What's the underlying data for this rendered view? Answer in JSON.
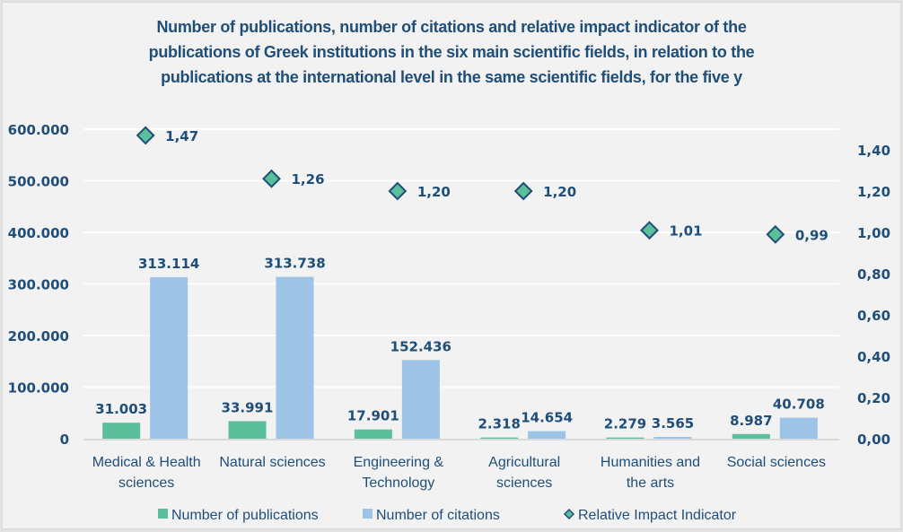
{
  "chart_data": {
    "type": "bar",
    "title_lines": [
      "Number of publications, number of citations and relative impact indicator of the",
      "publications of Greek institutions in the six main scientific fields, in relation to the",
      "publications at the international level in the same scientific fields, for the five y"
    ],
    "categories": [
      [
        "Medical & Health",
        "sciences"
      ],
      [
        "Natural sciences"
      ],
      [
        "Engineering &",
        "Technology"
      ],
      [
        "Agricultural",
        "sciences"
      ],
      [
        "Humanities and",
        "the arts"
      ],
      [
        "Social sciences"
      ]
    ],
    "series": [
      {
        "name": "Number of publications",
        "type": "bar",
        "axis": "left",
        "color": "#5bbf9b",
        "values": [
          31003,
          33991,
          17901,
          2318,
          2279,
          8987
        ],
        "labels": [
          "31.003",
          "33.991",
          "17.901",
          "2.318",
          "2.279",
          "8.987"
        ]
      },
      {
        "name": "Number of citations",
        "type": "bar",
        "axis": "left",
        "color": "#9dc3e6",
        "values": [
          313114,
          313738,
          152436,
          14654,
          3565,
          40708
        ],
        "labels": [
          "313.114",
          "313.738",
          "152.436",
          "14.654",
          "3.565",
          "40.708"
        ]
      },
      {
        "name": "Relative Impact Indicator",
        "type": "scatter",
        "axis": "right",
        "color": "#5bbf9b",
        "edge_color": "#1f4e79",
        "marker": "diamond",
        "values": [
          1.47,
          1.26,
          1.2,
          1.2,
          1.01,
          0.99
        ],
        "labels": [
          "1,47",
          "1,26",
          "1,20",
          "1,20",
          "1,01",
          "0,99"
        ]
      }
    ],
    "y_left": {
      "range": [
        0,
        600000
      ],
      "ticks": [
        0,
        100000,
        200000,
        300000,
        400000,
        500000,
        600000
      ],
      "tick_labels": [
        "0",
        "100.000",
        "200.000",
        "300.000",
        "400.000",
        "500.000",
        "600.000"
      ]
    },
    "y_right": {
      "range": [
        0,
        1.5
      ],
      "ticks": [
        0,
        0.2,
        0.4,
        0.6,
        0.8,
        1.0,
        1.2,
        1.4
      ],
      "tick_labels": [
        "0,00",
        "0,20",
        "0,40",
        "0,60",
        "0,80",
        "1,00",
        "1,20",
        "1,40"
      ]
    },
    "xlabel": "",
    "ylabel": "",
    "grid": true,
    "legend_position": "bottom",
    "text_color": "#1f4e79",
    "background": "#f2f2f2"
  }
}
